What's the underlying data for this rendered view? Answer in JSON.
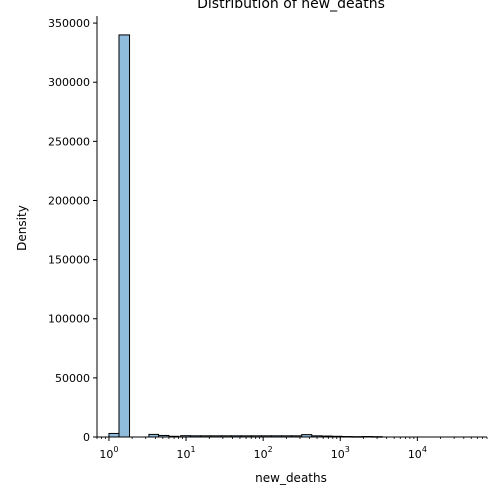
{
  "chart_data": {
    "type": "bar",
    "title": "Distribution of new_deaths",
    "xlabel": "new_deaths",
    "ylabel": "Density",
    "xscale": "log",
    "xlim": [
      0.7,
      80000
    ],
    "ylim": [
      0,
      356000
    ],
    "y_ticks": [
      0,
      50000,
      100000,
      150000,
      200000,
      250000,
      300000,
      350000
    ],
    "y_tick_labels": [
      "0",
      "50000",
      "100000",
      "150000",
      "200000",
      "250000",
      "300000",
      "350000"
    ],
    "x_ticks": [
      1,
      10,
      100,
      1000,
      10000
    ],
    "x_tick_labels": [
      {
        "base": "10",
        "exp": "0"
      },
      {
        "base": "10",
        "exp": "1"
      },
      {
        "base": "10",
        "exp": "2"
      },
      {
        "base": "10",
        "exp": "3"
      },
      {
        "base": "10",
        "exp": "4"
      }
    ],
    "bins": [
      {
        "x0": 1.0,
        "x1": 1.35,
        "value": 3000
      },
      {
        "x0": 1.35,
        "x1": 1.85,
        "value": 340000
      },
      {
        "x0": 3.3,
        "x1": 4.4,
        "value": 2200
      },
      {
        "x0": 4.4,
        "x1": 6.0,
        "value": 1300
      },
      {
        "x0": 6.0,
        "x1": 8.1,
        "value": 600
      },
      {
        "x0": 8.5,
        "x1": 11.5,
        "value": 1100
      },
      {
        "x0": 11.5,
        "x1": 15.5,
        "value": 1000
      },
      {
        "x0": 15.5,
        "x1": 21.0,
        "value": 1000
      },
      {
        "x0": 21.0,
        "x1": 28.5,
        "value": 1000
      },
      {
        "x0": 28.5,
        "x1": 38.5,
        "value": 1000
      },
      {
        "x0": 38.5,
        "x1": 52.0,
        "value": 1000
      },
      {
        "x0": 52.0,
        "x1": 70.0,
        "value": 1000
      },
      {
        "x0": 70.0,
        "x1": 95.0,
        "value": 1000
      },
      {
        "x0": 95.0,
        "x1": 128.0,
        "value": 1000
      },
      {
        "x0": 128.0,
        "x1": 173.0,
        "value": 1000
      },
      {
        "x0": 173.0,
        "x1": 234.0,
        "value": 1000
      },
      {
        "x0": 234.0,
        "x1": 316.0,
        "value": 1000
      },
      {
        "x0": 316.0,
        "x1": 427.0,
        "value": 2000
      },
      {
        "x0": 427.0,
        "x1": 577.0,
        "value": 1000
      },
      {
        "x0": 577.0,
        "x1": 780.0,
        "value": 800
      },
      {
        "x0": 780.0,
        "x1": 1050.0,
        "value": 600
      },
      {
        "x0": 1050.0,
        "x1": 1420.0,
        "value": 400
      },
      {
        "x0": 1420.0,
        "x1": 1920.0,
        "value": 300
      },
      {
        "x0": 1920.0,
        "x1": 2600.0,
        "value": 400
      },
      {
        "x0": 2600.0,
        "x1": 3500.0,
        "value": 300
      }
    ],
    "bar_fill": "#8fbcdc",
    "bar_edge": "#000000",
    "grid": false,
    "legend": "none"
  }
}
